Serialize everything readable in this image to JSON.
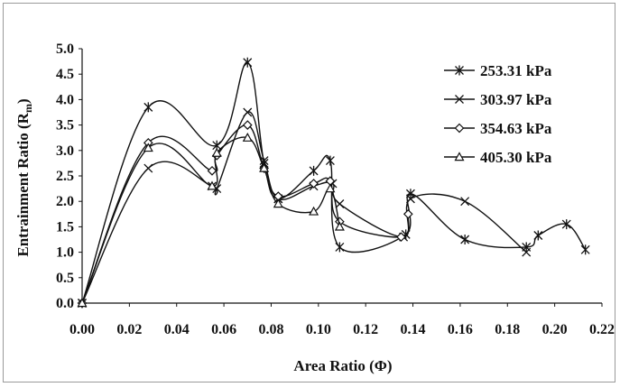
{
  "chart_data": {
    "type": "line",
    "title": "",
    "xlabel": "Area Ratio (Φ)",
    "ylabel": "Entrainment Ratio (R",
    "ylabel_sub": "m",
    "ylabel_tail": ")",
    "xlim": [
      0,
      0.22
    ],
    "ylim": [
      0,
      5.0
    ],
    "xticks": [
      "0.00",
      "0.02",
      "0.04",
      "0.06",
      "0.08",
      "0.10",
      "0.12",
      "0.14",
      "0.16",
      "0.18",
      "0.20",
      "0.22"
    ],
    "yticks": [
      "0.0",
      "0.5",
      "1.0",
      "1.5",
      "2.0",
      "2.5",
      "3.0",
      "3.5",
      "4.0",
      "4.5",
      "5.0"
    ],
    "grid": false,
    "legend_position": "top-right",
    "line_color": "#111111",
    "series": [
      {
        "name": "253.31 kPa",
        "marker": "asterisk",
        "x": [
          0.0,
          0.028,
          0.057,
          0.07,
          0.077,
          0.083,
          0.098,
          0.105,
          0.109,
          0.137,
          0.139,
          0.162,
          0.188,
          0.193,
          0.205,
          0.213
        ],
        "y": [
          0.0,
          3.85,
          3.1,
          4.73,
          2.75,
          2.05,
          2.6,
          2.8,
          1.1,
          1.35,
          2.15,
          1.25,
          1.1,
          1.33,
          1.55,
          1.05
        ]
      },
      {
        "name": "303.97 kPa",
        "marker": "x",
        "x": [
          0.0,
          0.028,
          0.055,
          0.057,
          0.07,
          0.077,
          0.083,
          0.098,
          0.106,
          0.109,
          0.136,
          0.139,
          0.162,
          0.188
        ],
        "y": [
          0.0,
          2.65,
          2.3,
          2.25,
          3.75,
          2.8,
          2.05,
          2.3,
          2.35,
          1.95,
          1.3,
          2.05,
          2.0,
          1.0
        ]
      },
      {
        "name": "354.63 kPa",
        "marker": "diamond",
        "x": [
          0.0,
          0.028,
          0.055,
          0.057,
          0.07,
          0.077,
          0.083,
          0.098,
          0.105,
          0.109,
          0.135,
          0.138
        ],
        "y": [
          0.0,
          3.15,
          2.6,
          2.9,
          3.5,
          2.65,
          2.1,
          2.35,
          2.4,
          1.6,
          1.3,
          1.75
        ]
      },
      {
        "name": "405.30 kPa",
        "marker": "triangle",
        "x": [
          0.0,
          0.028,
          0.055,
          0.057,
          0.07,
          0.077,
          0.083,
          0.098,
          0.105,
          0.109
        ],
        "y": [
          0.0,
          3.05,
          2.3,
          2.95,
          3.25,
          2.65,
          1.95,
          1.8,
          2.25,
          1.5
        ]
      }
    ]
  }
}
